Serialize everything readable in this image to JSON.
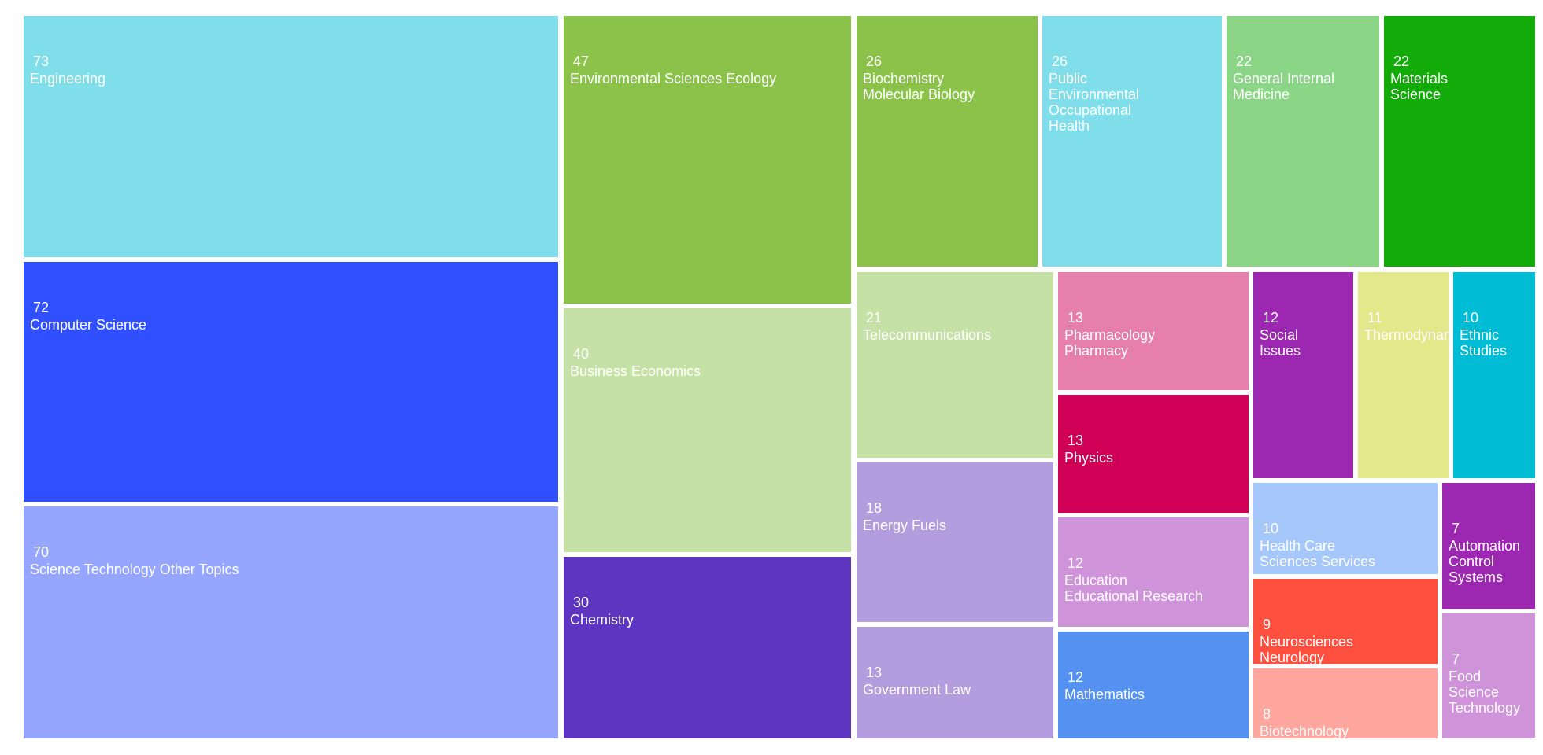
{
  "chart_data": {
    "type": "treemap",
    "title": "",
    "items": [
      {
        "label": "Engineering",
        "value": 73,
        "color": "#80deea"
      },
      {
        "label": "Computer Science",
        "value": 72,
        "color": "#304ffe"
      },
      {
        "label": "Science Technology Other Topics",
        "value": 70,
        "color": "#96a6ff"
      },
      {
        "label": "Environmental Sciences Ecology",
        "value": 47,
        "color": "#8bc34a"
      },
      {
        "label": "Business Economics",
        "value": 40,
        "color": "#c5e1a5"
      },
      {
        "label": "Chemistry",
        "value": 30,
        "color": "#5e35c0"
      },
      {
        "label": "Biochemistry\nMolecular Biology",
        "value": 26,
        "color": "#8bc34a"
      },
      {
        "label": "Public\nEnvironmental\nOccupational\nHealth",
        "value": 26,
        "color": "#80deea"
      },
      {
        "label": "General Internal\nMedicine",
        "value": 22,
        "color": "#8bd586"
      },
      {
        "label": "Materials\nScience",
        "value": 22,
        "color": "#13ab0a"
      },
      {
        "label": "Telecommunications",
        "value": 21,
        "color": "#c5e1a5"
      },
      {
        "label": "Energy Fuels",
        "value": 18,
        "color": "#b39ddf"
      },
      {
        "label": "Government Law",
        "value": 13,
        "color": "#b39ddf"
      },
      {
        "label": "Pharmacology\nPharmacy",
        "value": 13,
        "color": "#e67fab"
      },
      {
        "label": "Physics",
        "value": 13,
        "color": "#cf0056"
      },
      {
        "label": "Education\nEducational Research",
        "value": 12,
        "color": "#ce93d8"
      },
      {
        "label": "Mathematics",
        "value": 12,
        "color": "#5591f0"
      },
      {
        "label": "Social\nIssues",
        "value": 12,
        "color": "#9c27b0"
      },
      {
        "label": "Thermodynamics",
        "value": 11,
        "color": "#e3e88a"
      },
      {
        "label": "Ethnic\nStudies",
        "value": 10,
        "color": "#00bcd4"
      },
      {
        "label": "Health Care\nSciences Services",
        "value": 10,
        "color": "#a6c7fa"
      },
      {
        "label": "Neurosciences\nNeurology",
        "value": 9,
        "color": "#ff4f3f"
      },
      {
        "label": "Biotechnology",
        "value": 8,
        "color": "#ffa69e"
      },
      {
        "label": "Automation\nControl\nSystems",
        "value": 7,
        "color": "#9c27b0"
      },
      {
        "label": "Food\nScience\nTechnology",
        "value": 7,
        "color": "#ce93d8"
      }
    ]
  }
}
